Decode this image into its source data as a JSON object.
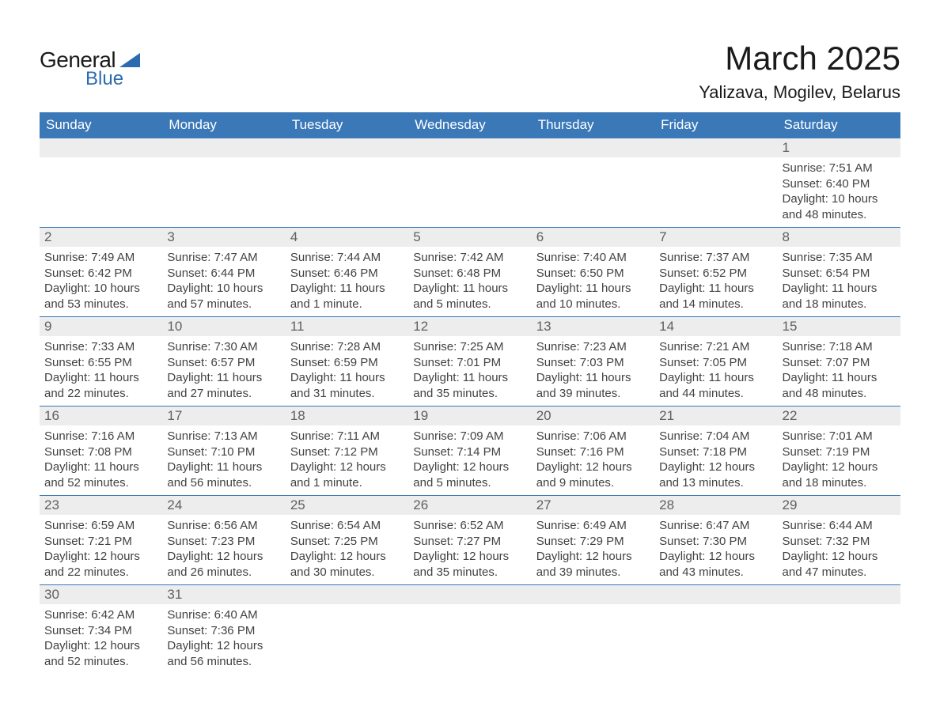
{
  "brand": {
    "general": "General",
    "blue": "Blue",
    "tri_color": "#2d6bb0"
  },
  "title": "March 2025",
  "location": "Yalizava, Mogilev, Belarus",
  "colors": {
    "header_bg": "#3a78b8",
    "header_text": "#ffffff",
    "row_divider": "#3a78b8",
    "daynum_bg": "#ededed",
    "daynum_text": "#606060",
    "body_text": "#424242",
    "page_bg": "#ffffff"
  },
  "typography": {
    "title_fontsize": 42,
    "location_fontsize": 22,
    "header_fontsize": 17,
    "daynum_fontsize": 17,
    "body_fontsize": 15
  },
  "weekdays": [
    "Sunday",
    "Monday",
    "Tuesday",
    "Wednesday",
    "Thursday",
    "Friday",
    "Saturday"
  ],
  "weeks": [
    [
      {
        "n": "",
        "sr": "",
        "ss": "",
        "dl": ""
      },
      {
        "n": "",
        "sr": "",
        "ss": "",
        "dl": ""
      },
      {
        "n": "",
        "sr": "",
        "ss": "",
        "dl": ""
      },
      {
        "n": "",
        "sr": "",
        "ss": "",
        "dl": ""
      },
      {
        "n": "",
        "sr": "",
        "ss": "",
        "dl": ""
      },
      {
        "n": "",
        "sr": "",
        "ss": "",
        "dl": ""
      },
      {
        "n": "1",
        "sr": "Sunrise: 7:51 AM",
        "ss": "Sunset: 6:40 PM",
        "dl": "Daylight: 10 hours and 48 minutes."
      }
    ],
    [
      {
        "n": "2",
        "sr": "Sunrise: 7:49 AM",
        "ss": "Sunset: 6:42 PM",
        "dl": "Daylight: 10 hours and 53 minutes."
      },
      {
        "n": "3",
        "sr": "Sunrise: 7:47 AM",
        "ss": "Sunset: 6:44 PM",
        "dl": "Daylight: 10 hours and 57 minutes."
      },
      {
        "n": "4",
        "sr": "Sunrise: 7:44 AM",
        "ss": "Sunset: 6:46 PM",
        "dl": "Daylight: 11 hours and 1 minute."
      },
      {
        "n": "5",
        "sr": "Sunrise: 7:42 AM",
        "ss": "Sunset: 6:48 PM",
        "dl": "Daylight: 11 hours and 5 minutes."
      },
      {
        "n": "6",
        "sr": "Sunrise: 7:40 AM",
        "ss": "Sunset: 6:50 PM",
        "dl": "Daylight: 11 hours and 10 minutes."
      },
      {
        "n": "7",
        "sr": "Sunrise: 7:37 AM",
        "ss": "Sunset: 6:52 PM",
        "dl": "Daylight: 11 hours and 14 minutes."
      },
      {
        "n": "8",
        "sr": "Sunrise: 7:35 AM",
        "ss": "Sunset: 6:54 PM",
        "dl": "Daylight: 11 hours and 18 minutes."
      }
    ],
    [
      {
        "n": "9",
        "sr": "Sunrise: 7:33 AM",
        "ss": "Sunset: 6:55 PM",
        "dl": "Daylight: 11 hours and 22 minutes."
      },
      {
        "n": "10",
        "sr": "Sunrise: 7:30 AM",
        "ss": "Sunset: 6:57 PM",
        "dl": "Daylight: 11 hours and 27 minutes."
      },
      {
        "n": "11",
        "sr": "Sunrise: 7:28 AM",
        "ss": "Sunset: 6:59 PM",
        "dl": "Daylight: 11 hours and 31 minutes."
      },
      {
        "n": "12",
        "sr": "Sunrise: 7:25 AM",
        "ss": "Sunset: 7:01 PM",
        "dl": "Daylight: 11 hours and 35 minutes."
      },
      {
        "n": "13",
        "sr": "Sunrise: 7:23 AM",
        "ss": "Sunset: 7:03 PM",
        "dl": "Daylight: 11 hours and 39 minutes."
      },
      {
        "n": "14",
        "sr": "Sunrise: 7:21 AM",
        "ss": "Sunset: 7:05 PM",
        "dl": "Daylight: 11 hours and 44 minutes."
      },
      {
        "n": "15",
        "sr": "Sunrise: 7:18 AM",
        "ss": "Sunset: 7:07 PM",
        "dl": "Daylight: 11 hours and 48 minutes."
      }
    ],
    [
      {
        "n": "16",
        "sr": "Sunrise: 7:16 AM",
        "ss": "Sunset: 7:08 PM",
        "dl": "Daylight: 11 hours and 52 minutes."
      },
      {
        "n": "17",
        "sr": "Sunrise: 7:13 AM",
        "ss": "Sunset: 7:10 PM",
        "dl": "Daylight: 11 hours and 56 minutes."
      },
      {
        "n": "18",
        "sr": "Sunrise: 7:11 AM",
        "ss": "Sunset: 7:12 PM",
        "dl": "Daylight: 12 hours and 1 minute."
      },
      {
        "n": "19",
        "sr": "Sunrise: 7:09 AM",
        "ss": "Sunset: 7:14 PM",
        "dl": "Daylight: 12 hours and 5 minutes."
      },
      {
        "n": "20",
        "sr": "Sunrise: 7:06 AM",
        "ss": "Sunset: 7:16 PM",
        "dl": "Daylight: 12 hours and 9 minutes."
      },
      {
        "n": "21",
        "sr": "Sunrise: 7:04 AM",
        "ss": "Sunset: 7:18 PM",
        "dl": "Daylight: 12 hours and 13 minutes."
      },
      {
        "n": "22",
        "sr": "Sunrise: 7:01 AM",
        "ss": "Sunset: 7:19 PM",
        "dl": "Daylight: 12 hours and 18 minutes."
      }
    ],
    [
      {
        "n": "23",
        "sr": "Sunrise: 6:59 AM",
        "ss": "Sunset: 7:21 PM",
        "dl": "Daylight: 12 hours and 22 minutes."
      },
      {
        "n": "24",
        "sr": "Sunrise: 6:56 AM",
        "ss": "Sunset: 7:23 PM",
        "dl": "Daylight: 12 hours and 26 minutes."
      },
      {
        "n": "25",
        "sr": "Sunrise: 6:54 AM",
        "ss": "Sunset: 7:25 PM",
        "dl": "Daylight: 12 hours and 30 minutes."
      },
      {
        "n": "26",
        "sr": "Sunrise: 6:52 AM",
        "ss": "Sunset: 7:27 PM",
        "dl": "Daylight: 12 hours and 35 minutes."
      },
      {
        "n": "27",
        "sr": "Sunrise: 6:49 AM",
        "ss": "Sunset: 7:29 PM",
        "dl": "Daylight: 12 hours and 39 minutes."
      },
      {
        "n": "28",
        "sr": "Sunrise: 6:47 AM",
        "ss": "Sunset: 7:30 PM",
        "dl": "Daylight: 12 hours and 43 minutes."
      },
      {
        "n": "29",
        "sr": "Sunrise: 6:44 AM",
        "ss": "Sunset: 7:32 PM",
        "dl": "Daylight: 12 hours and 47 minutes."
      }
    ],
    [
      {
        "n": "30",
        "sr": "Sunrise: 6:42 AM",
        "ss": "Sunset: 7:34 PM",
        "dl": "Daylight: 12 hours and 52 minutes."
      },
      {
        "n": "31",
        "sr": "Sunrise: 6:40 AM",
        "ss": "Sunset: 7:36 PM",
        "dl": "Daylight: 12 hours and 56 minutes."
      },
      {
        "n": "",
        "sr": "",
        "ss": "",
        "dl": ""
      },
      {
        "n": "",
        "sr": "",
        "ss": "",
        "dl": ""
      },
      {
        "n": "",
        "sr": "",
        "ss": "",
        "dl": ""
      },
      {
        "n": "",
        "sr": "",
        "ss": "",
        "dl": ""
      },
      {
        "n": "",
        "sr": "",
        "ss": "",
        "dl": ""
      }
    ]
  ]
}
